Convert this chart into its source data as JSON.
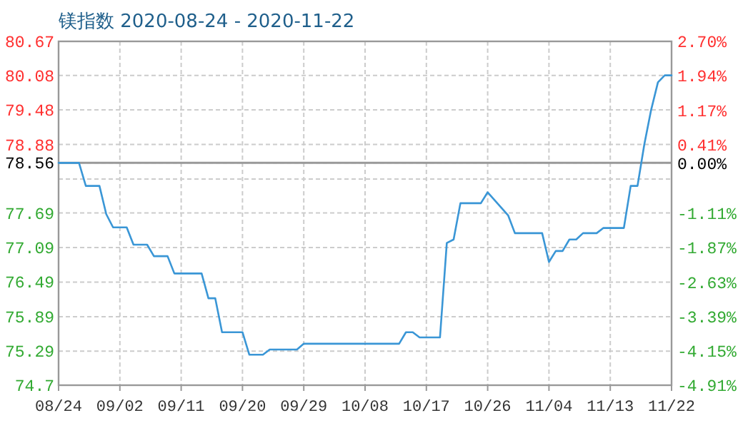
{
  "chart_data": {
    "type": "line",
    "title": "镁指数 2020-08-24 - 2020-11-22",
    "x": [
      "2020-08-24",
      "2020-08-27",
      "2020-08-28",
      "2020-08-30",
      "2020-08-31",
      "2020-09-01",
      "2020-09-03",
      "2020-09-04",
      "2020-09-06",
      "2020-09-07",
      "2020-09-09",
      "2020-09-10",
      "2020-09-14",
      "2020-09-15",
      "2020-09-16",
      "2020-09-17",
      "2020-09-20",
      "2020-09-21",
      "2020-09-23",
      "2020-09-24",
      "2020-09-28",
      "2020-09-29",
      "2020-10-13",
      "2020-10-14",
      "2020-10-15",
      "2020-10-16",
      "2020-10-19",
      "2020-10-20",
      "2020-10-21",
      "2020-10-22",
      "2020-10-25",
      "2020-10-26",
      "2020-10-29",
      "2020-10-30",
      "2020-11-03",
      "2020-11-04",
      "2020-11-05",
      "2020-11-06",
      "2020-11-07",
      "2020-11-08",
      "2020-11-09",
      "2020-11-11",
      "2020-11-12",
      "2020-11-15",
      "2020-11-16",
      "2020-11-17",
      "2020-11-18",
      "2020-11-19",
      "2020-11-20",
      "2020-11-21",
      "2020-11-22"
    ],
    "series": [
      {
        "color": "#3a96d6",
        "values": [
          78.56,
          78.56,
          78.16,
          78.16,
          77.67,
          77.44,
          77.44,
          77.14,
          77.14,
          76.94,
          76.94,
          76.64,
          76.64,
          76.21,
          76.21,
          75.62,
          75.62,
          75.23,
          75.23,
          75.32,
          75.32,
          75.42,
          75.42,
          75.62,
          75.62,
          75.53,
          75.53,
          77.17,
          77.23,
          77.86,
          77.86,
          78.05,
          77.65,
          77.34,
          77.34,
          76.84,
          77.03,
          77.03,
          77.23,
          77.23,
          77.34,
          77.34,
          77.43,
          77.43,
          78.16,
          78.16,
          78.88,
          79.48,
          79.96,
          80.08,
          80.08
        ]
      }
    ],
    "xlim": [
      "2020-08-24",
      "2020-11-22"
    ],
    "xticks": [
      {
        "value": "2020-08-24",
        "label": "08/24"
      },
      {
        "value": "2020-09-02",
        "label": "09/02"
      },
      {
        "value": "2020-09-11",
        "label": "09/11"
      },
      {
        "value": "2020-09-20",
        "label": "09/20"
      },
      {
        "value": "2020-09-29",
        "label": "09/29"
      },
      {
        "value": "2020-10-08",
        "label": "10/08"
      },
      {
        "value": "2020-10-17",
        "label": "10/17"
      },
      {
        "value": "2020-10-26",
        "label": "10/26"
      },
      {
        "value": "2020-11-04",
        "label": "11/04"
      },
      {
        "value": "2020-11-13",
        "label": "11/13"
      },
      {
        "value": "2020-11-22",
        "label": "11/22"
      }
    ],
    "ylim": [
      74.7,
      80.67
    ],
    "yticks": [
      74.7,
      75.29,
      75.89,
      76.49,
      77.09,
      77.69,
      {
        "value": 78.28,
        "label": null
      },
      78.56,
      78.88,
      79.48,
      80.08,
      80.67
    ],
    "y2lim": [
      -4.91,
      2.7
    ],
    "y2ticks": [
      {
        "value": -4.91,
        "label": "-4.91%"
      },
      {
        "value": -4.15,
        "label": "-4.15%"
      },
      {
        "value": -3.39,
        "label": "-3.39%"
      },
      {
        "value": -2.63,
        "label": "-2.63%"
      },
      {
        "value": -1.87,
        "label": "-1.87%"
      },
      {
        "value": -1.11,
        "label": "-1.11%"
      },
      {
        "value": 0.0,
        "label": "0.00%"
      },
      {
        "value": 0.41,
        "label": "0.41%"
      },
      {
        "value": 1.17,
        "label": "1.17%"
      },
      {
        "value": 1.94,
        "label": "1.94%"
      },
      {
        "value": 2.7,
        "label": "2.70%"
      }
    ],
    "ref_lines": [
      {
        "axis": "y",
        "value": 78.56,
        "color": "#999999"
      }
    ],
    "grid": true
  }
}
